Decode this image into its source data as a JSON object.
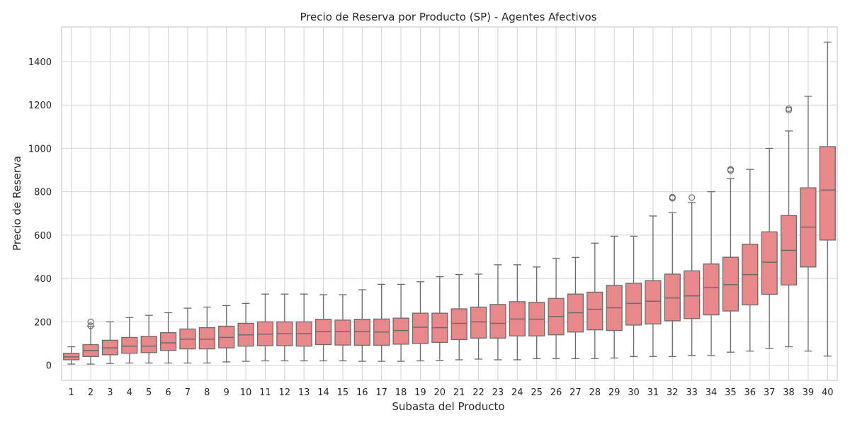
{
  "chart_data": {
    "type": "box",
    "title": "Precio de Reserva por Producto (SP) - Agentes Afectivos",
    "xlabel": "Subasta del Producto",
    "ylabel": "Precio de Reserva",
    "ylim": [
      -70,
      1560
    ],
    "yticks": [
      0,
      200,
      400,
      600,
      800,
      1000,
      1200,
      1400
    ],
    "grid": true,
    "categories": [
      "1",
      "2",
      "3",
      "4",
      "5",
      "6",
      "7",
      "8",
      "9",
      "10",
      "11",
      "12",
      "13",
      "14",
      "15",
      "16",
      "17",
      "18",
      "19",
      "20",
      "21",
      "22",
      "23",
      "24",
      "25",
      "26",
      "27",
      "28",
      "29",
      "30",
      "31",
      "32",
      "33",
      "34",
      "35",
      "36",
      "37",
      "38",
      "39",
      "40"
    ],
    "boxes": [
      {
        "whisker_low": 5,
        "q1": 25,
        "median": 38,
        "q3": 55,
        "whisker_high": 85,
        "outliers": []
      },
      {
        "whisker_low": 5,
        "q1": 40,
        "median": 68,
        "q3": 95,
        "whisker_high": 180,
        "outliers": [
          182,
          200
        ]
      },
      {
        "whisker_low": 8,
        "q1": 48,
        "median": 80,
        "q3": 115,
        "whisker_high": 200,
        "outliers": []
      },
      {
        "whisker_low": 10,
        "q1": 55,
        "median": 88,
        "q3": 128,
        "whisker_high": 220,
        "outliers": []
      },
      {
        "whisker_low": 10,
        "q1": 58,
        "median": 88,
        "q3": 133,
        "whisker_high": 230,
        "outliers": []
      },
      {
        "whisker_low": 10,
        "q1": 68,
        "median": 103,
        "q3": 150,
        "whisker_high": 242,
        "outliers": []
      },
      {
        "whisker_low": 10,
        "q1": 75,
        "median": 120,
        "q3": 167,
        "whisker_high": 263,
        "outliers": []
      },
      {
        "whisker_low": 10,
        "q1": 75,
        "median": 120,
        "q3": 173,
        "whisker_high": 268,
        "outliers": []
      },
      {
        "whisker_low": 15,
        "q1": 80,
        "median": 128,
        "q3": 180,
        "whisker_high": 275,
        "outliers": []
      },
      {
        "whisker_low": 18,
        "q1": 88,
        "median": 140,
        "q3": 193,
        "whisker_high": 285,
        "outliers": []
      },
      {
        "whisker_low": 20,
        "q1": 90,
        "median": 143,
        "q3": 200,
        "whisker_high": 328,
        "outliers": []
      },
      {
        "whisker_low": 20,
        "q1": 90,
        "median": 145,
        "q3": 200,
        "whisker_high": 328,
        "outliers": []
      },
      {
        "whisker_low": 20,
        "q1": 88,
        "median": 145,
        "q3": 200,
        "whisker_high": 328,
        "outliers": []
      },
      {
        "whisker_low": 20,
        "q1": 95,
        "median": 155,
        "q3": 212,
        "whisker_high": 325,
        "outliers": []
      },
      {
        "whisker_low": 20,
        "q1": 93,
        "median": 155,
        "q3": 208,
        "whisker_high": 325,
        "outliers": []
      },
      {
        "whisker_low": 18,
        "q1": 92,
        "median": 155,
        "q3": 212,
        "whisker_high": 348,
        "outliers": []
      },
      {
        "whisker_low": 18,
        "q1": 92,
        "median": 153,
        "q3": 213,
        "whisker_high": 373,
        "outliers": []
      },
      {
        "whisker_low": 18,
        "q1": 97,
        "median": 160,
        "q3": 217,
        "whisker_high": 373,
        "outliers": []
      },
      {
        "whisker_low": 20,
        "q1": 100,
        "median": 175,
        "q3": 240,
        "whisker_high": 385,
        "outliers": []
      },
      {
        "whisker_low": 22,
        "q1": 105,
        "median": 173,
        "q3": 240,
        "whisker_high": 408,
        "outliers": []
      },
      {
        "whisker_low": 25,
        "q1": 118,
        "median": 193,
        "q3": 260,
        "whisker_high": 418,
        "outliers": []
      },
      {
        "whisker_low": 28,
        "q1": 125,
        "median": 200,
        "q3": 268,
        "whisker_high": 420,
        "outliers": []
      },
      {
        "whisker_low": 25,
        "q1": 125,
        "median": 193,
        "q3": 280,
        "whisker_high": 463,
        "outliers": []
      },
      {
        "whisker_low": 25,
        "q1": 135,
        "median": 213,
        "q3": 293,
        "whisker_high": 463,
        "outliers": []
      },
      {
        "whisker_low": 30,
        "q1": 135,
        "median": 212,
        "q3": 290,
        "whisker_high": 453,
        "outliers": []
      },
      {
        "whisker_low": 30,
        "q1": 140,
        "median": 225,
        "q3": 308,
        "whisker_high": 493,
        "outliers": []
      },
      {
        "whisker_low": 30,
        "q1": 153,
        "median": 242,
        "q3": 328,
        "whisker_high": 497,
        "outliers": []
      },
      {
        "whisker_low": 30,
        "q1": 163,
        "median": 258,
        "q3": 337,
        "whisker_high": 563,
        "outliers": []
      },
      {
        "whisker_low": 33,
        "q1": 160,
        "median": 265,
        "q3": 368,
        "whisker_high": 595,
        "outliers": []
      },
      {
        "whisker_low": 40,
        "q1": 185,
        "median": 285,
        "q3": 378,
        "whisker_high": 595,
        "outliers": []
      },
      {
        "whisker_low": 40,
        "q1": 190,
        "median": 295,
        "q3": 390,
        "whisker_high": 688,
        "outliers": []
      },
      {
        "whisker_low": 40,
        "q1": 205,
        "median": 310,
        "q3": 420,
        "whisker_high": 703,
        "outliers": [
          770,
          775
        ]
      },
      {
        "whisker_low": 45,
        "q1": 215,
        "median": 320,
        "q3": 435,
        "whisker_high": 750,
        "outliers": [
          773
        ]
      },
      {
        "whisker_low": 45,
        "q1": 232,
        "median": 358,
        "q3": 467,
        "whisker_high": 800,
        "outliers": []
      },
      {
        "whisker_low": 60,
        "q1": 250,
        "median": 372,
        "q3": 498,
        "whisker_high": 860,
        "outliers": [
          898,
          903
        ]
      },
      {
        "whisker_low": 65,
        "q1": 278,
        "median": 418,
        "q3": 558,
        "whisker_high": 903,
        "outliers": []
      },
      {
        "whisker_low": 78,
        "q1": 327,
        "median": 475,
        "q3": 615,
        "whisker_high": 1000,
        "outliers": []
      },
      {
        "whisker_low": 85,
        "q1": 370,
        "median": 530,
        "q3": 690,
        "whisker_high": 1080,
        "outliers": [
          1177,
          1183
        ]
      },
      {
        "whisker_low": 65,
        "q1": 453,
        "median": 637,
        "q3": 818,
        "whisker_high": 1240,
        "outliers": []
      },
      {
        "whisker_low": 42,
        "q1": 577,
        "median": 808,
        "q3": 1008,
        "whisker_high": 1490,
        "outliers": []
      }
    ],
    "colors": {
      "box_fill": "#e8888a",
      "line": "#6b6b6b",
      "grid": "#d4d4d4",
      "frame": "#cccccc",
      "text": "#262626",
      "background": "#ffffff"
    }
  }
}
